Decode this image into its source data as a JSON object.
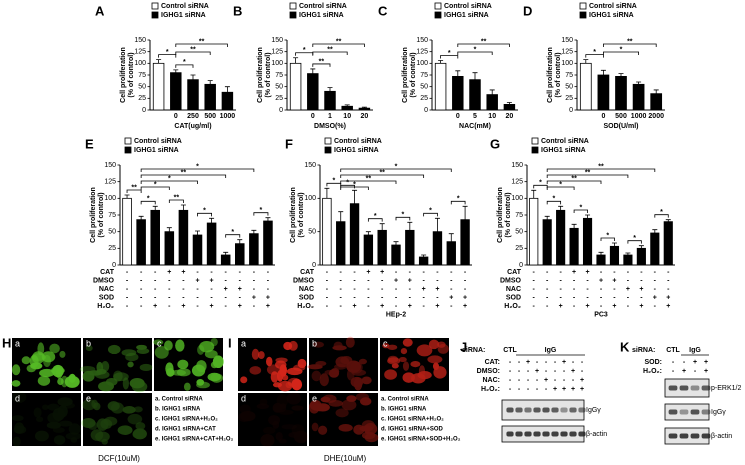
{
  "chart_data": [
    {
      "type": "bar",
      "letter": "A",
      "ylabel": [
        "Cell proliferation",
        "(% of control)"
      ],
      "xlabel": "CAT(ug/ml)",
      "categories": [
        null,
        "0",
        "250",
        "500",
        "1000"
      ],
      "series": [
        {
          "name": "Control siRNA",
          "color": "#ffffff",
          "values": [
            100,
            null,
            null,
            null,
            null
          ],
          "errors": [
            8,
            null,
            null,
            null,
            null
          ]
        },
        {
          "name": "IGHG1 siRNA",
          "color": "#000000",
          "values": [
            null,
            80,
            65,
            55,
            38
          ],
          "errors": [
            null,
            6,
            10,
            8,
            12
          ]
        }
      ],
      "ylim": [
        0,
        150
      ],
      "yticks": [
        0,
        25,
        50,
        75,
        100,
        125,
        150
      ],
      "significance": [
        {
          "bars": [
            0,
            1
          ],
          "label": "*"
        },
        {
          "bars": [
            1,
            2
          ],
          "label": "*"
        },
        {
          "bars": [
            1,
            3
          ],
          "label": "**"
        },
        {
          "bars": [
            1,
            4
          ],
          "label": "**"
        }
      ]
    },
    {
      "type": "bar",
      "letter": "B",
      "ylabel": [
        "Cell proliferation",
        "(% of control)"
      ],
      "xlabel": "DMSO(%)",
      "categories": [
        null,
        "0",
        "1",
        "10",
        "20"
      ],
      "series": [
        {
          "name": "Control siRNA",
          "color": "#ffffff",
          "values": [
            100,
            null,
            null,
            null,
            null
          ],
          "errors": [
            12,
            null,
            null,
            null,
            null
          ]
        },
        {
          "name": "IGHG1 siRNA",
          "color": "#000000",
          "values": [
            null,
            78,
            40,
            8,
            4
          ],
          "errors": [
            null,
            10,
            8,
            3,
            2
          ]
        }
      ],
      "ylim": [
        0,
        150
      ],
      "yticks": [
        0,
        25,
        50,
        75,
        100,
        125,
        150
      ],
      "significance": [
        {
          "bars": [
            0,
            1
          ],
          "label": "*"
        },
        {
          "bars": [
            1,
            2
          ],
          "label": "**"
        },
        {
          "bars": [
            1,
            3
          ],
          "label": "**"
        },
        {
          "bars": [
            1,
            4
          ],
          "label": "**"
        }
      ]
    },
    {
      "type": "bar",
      "letter": "C",
      "ylabel": [
        "Cell proliferation",
        "(% of control)"
      ],
      "xlabel": "NAC(mM)",
      "categories": [
        null,
        "0",
        "5",
        "10",
        "20"
      ],
      "series": [
        {
          "name": "Control siRNA",
          "color": "#ffffff",
          "values": [
            100,
            null,
            null,
            null,
            null
          ],
          "errors": [
            6,
            null,
            null,
            null,
            null
          ]
        },
        {
          "name": "IGHG1 siRNA",
          "color": "#000000",
          "values": [
            null,
            72,
            65,
            33,
            12
          ],
          "errors": [
            null,
            12,
            15,
            10,
            4
          ]
        }
      ],
      "ylim": [
        0,
        150
      ],
      "yticks": [
        0,
        25,
        50,
        75,
        100,
        125,
        150
      ],
      "significance": [
        {
          "bars": [
            0,
            1
          ],
          "label": "*"
        },
        {
          "bars": [
            1,
            3
          ],
          "label": "*"
        },
        {
          "bars": [
            1,
            4
          ],
          "label": "**"
        }
      ]
    },
    {
      "type": "bar",
      "letter": "D",
      "ylabel": [
        "Cell proliferation",
        "(% of control)"
      ],
      "xlabel": "SOD(U/ml)",
      "categories": [
        null,
        "0",
        "500",
        "1000",
        "2000"
      ],
      "series": [
        {
          "name": "Control siRNA",
          "color": "#ffffff",
          "values": [
            100,
            null,
            null,
            null,
            null
          ],
          "errors": [
            8,
            null,
            null,
            null,
            null
          ]
        },
        {
          "name": "IGHG1 siRNA",
          "color": "#000000",
          "values": [
            null,
            75,
            72,
            55,
            35
          ],
          "errors": [
            null,
            10,
            6,
            5,
            8
          ]
        }
      ],
      "ylim": [
        0,
        150
      ],
      "yticks": [
        0,
        25,
        50,
        75,
        100,
        125,
        150
      ],
      "significance": [
        {
          "bars": [
            0,
            1
          ],
          "label": "*"
        },
        {
          "bars": [
            1,
            3
          ],
          "label": "*"
        },
        {
          "bars": [
            1,
            4
          ],
          "label": "**"
        }
      ]
    },
    {
      "type": "bar",
      "letter": "E",
      "ylabel": [
        "Cell proliferation",
        "(% of control)"
      ],
      "series": [
        {
          "name": "Control siRNA",
          "color": "#ffffff",
          "values": [
            100,
            null,
            null,
            null,
            null,
            null,
            null,
            null,
            null,
            null,
            null
          ],
          "errors": [
            5,
            null,
            null,
            null,
            null,
            null,
            null,
            null,
            null,
            null,
            null
          ]
        },
        {
          "name": "IGHG1 siRNA",
          "color": "#000000",
          "values": [
            null,
            68,
            82,
            50,
            82,
            45,
            63,
            15,
            32,
            47,
            66
          ],
          "errors": [
            null,
            5,
            6,
            6,
            8,
            6,
            7,
            4,
            6,
            5,
            5
          ]
        }
      ],
      "ylim": [
        0,
        150
      ],
      "yticks": [
        0,
        25,
        50,
        75,
        100,
        125,
        150
      ],
      "conditions": {
        "rows": [
          "CAT",
          "DMSO",
          "NAC",
          "SOD",
          "H₂O₂"
        ],
        "cells": [
          [
            "-",
            "-",
            "-",
            "+",
            "+",
            "-",
            "-",
            "-",
            "-",
            "-",
            "-"
          ],
          [
            "-",
            "-",
            "-",
            "-",
            "-",
            "+",
            "+",
            "-",
            "-",
            "-",
            "-"
          ],
          [
            "-",
            "-",
            "-",
            "-",
            "-",
            "-",
            "-",
            "+",
            "+",
            "-",
            "-"
          ],
          [
            "-",
            "-",
            "-",
            "-",
            "-",
            "-",
            "-",
            "-",
            "-",
            "+",
            "+"
          ],
          [
            "-",
            "-",
            "+",
            "-",
            "+",
            "-",
            "+",
            "-",
            "+",
            "-",
            "+"
          ]
        ]
      },
      "significance": [
        {
          "bars": [
            0,
            1
          ],
          "label": "**"
        },
        {
          "bars": [
            1,
            2
          ],
          "label": "*"
        },
        {
          "bars": [
            3,
            4
          ],
          "label": "**"
        },
        {
          "bars": [
            5,
            6
          ],
          "label": "*"
        },
        {
          "bars": [
            7,
            8
          ],
          "label": "*"
        },
        {
          "bars": [
            9,
            10
          ],
          "label": "*"
        },
        {
          "bars": [
            1,
            3
          ],
          "label": "*"
        },
        {
          "bars": [
            1,
            5
          ],
          "label": "*"
        },
        {
          "bars": [
            1,
            7
          ],
          "label": "**"
        },
        {
          "bars": [
            1,
            9
          ],
          "label": "*"
        }
      ]
    },
    {
      "type": "bar",
      "letter": "F",
      "ylabel": [
        "Cell proliferation",
        "(% of control)"
      ],
      "xlabel": "HEp-2",
      "series": [
        {
          "name": "Control siRNA",
          "color": "#ffffff",
          "values": [
            100,
            null,
            null,
            null,
            null,
            null,
            null,
            null,
            null,
            null,
            null
          ],
          "errors": [
            15,
            null,
            null,
            null,
            null,
            null,
            null,
            null,
            null,
            null,
            null
          ]
        },
        {
          "name": "IGHG1 siRNA",
          "color": "#000000",
          "values": [
            null,
            65,
            92,
            45,
            52,
            30,
            52,
            12,
            50,
            35,
            68
          ],
          "errors": [
            null,
            15,
            20,
            5,
            10,
            5,
            12,
            3,
            20,
            12,
            20
          ]
        }
      ],
      "ylim": [
        0,
        150
      ],
      "yticks": [
        0,
        50,
        100,
        150
      ],
      "conditions": {
        "rows": [
          "CAT",
          "DMSO",
          "NAC",
          "SOD",
          "H₂O₂"
        ],
        "cells": [
          [
            "-",
            "-",
            "-",
            "+",
            "+",
            "-",
            "-",
            "-",
            "-",
            "-",
            "-"
          ],
          [
            "-",
            "-",
            "-",
            "-",
            "-",
            "+",
            "+",
            "-",
            "-",
            "-",
            "-"
          ],
          [
            "-",
            "-",
            "-",
            "-",
            "-",
            "-",
            "-",
            "+",
            "+",
            "-",
            "-"
          ],
          [
            "-",
            "-",
            "-",
            "-",
            "-",
            "-",
            "-",
            "-",
            "-",
            "+",
            "+"
          ],
          [
            "-",
            "-",
            "+",
            "-",
            "+",
            "-",
            "+",
            "-",
            "+",
            "-",
            "+"
          ]
        ]
      },
      "significance": [
        {
          "bars": [
            0,
            1
          ],
          "label": "*"
        },
        {
          "bars": [
            1,
            2
          ],
          "label": "*"
        },
        {
          "bars": [
            3,
            4
          ],
          "label": "*"
        },
        {
          "bars": [
            5,
            6
          ],
          "label": "*"
        },
        {
          "bars": [
            7,
            8
          ],
          "label": "*"
        },
        {
          "bars": [
            9,
            10
          ],
          "label": "*"
        },
        {
          "bars": [
            1,
            3
          ],
          "label": "*"
        },
        {
          "bars": [
            1,
            5
          ],
          "label": "**"
        },
        {
          "bars": [
            1,
            7
          ],
          "label": "**"
        },
        {
          "bars": [
            1,
            9
          ],
          "label": "*"
        }
      ]
    },
    {
      "type": "bar",
      "letter": "G",
      "ylabel": [
        "Cell proliferation",
        "(% of control)"
      ],
      "xlabel": "PC3",
      "series": [
        {
          "name": "Control siRNA",
          "color": "#ffffff",
          "values": [
            100,
            null,
            null,
            null,
            null,
            null,
            null,
            null,
            null,
            null,
            null
          ],
          "errors": [
            12,
            null,
            null,
            null,
            null,
            null,
            null,
            null,
            null,
            null,
            null
          ]
        },
        {
          "name": "IGHG1 siRNA",
          "color": "#000000",
          "values": [
            null,
            68,
            82,
            55,
            70,
            15,
            28,
            15,
            25,
            48,
            65
          ],
          "errors": [
            null,
            5,
            6,
            6,
            5,
            4,
            5,
            3,
            4,
            5,
            3
          ]
        }
      ],
      "ylim": [
        0,
        150
      ],
      "yticks": [
        0,
        25,
        50,
        75,
        100,
        125,
        150
      ],
      "conditions": {
        "rows": [
          "CAT",
          "DMSO",
          "NAC",
          "SOD",
          "H₂O₂"
        ],
        "cells": [
          [
            "-",
            "-",
            "-",
            "+",
            "+",
            "-",
            "-",
            "-",
            "-",
            "-",
            "-"
          ],
          [
            "-",
            "-",
            "-",
            "-",
            "-",
            "+",
            "+",
            "-",
            "-",
            "-",
            "-"
          ],
          [
            "-",
            "-",
            "-",
            "-",
            "-",
            "-",
            "-",
            "+",
            "+",
            "-",
            "-"
          ],
          [
            "-",
            "-",
            "-",
            "-",
            "-",
            "-",
            "-",
            "-",
            "-",
            "+",
            "+"
          ],
          [
            "-",
            "-",
            "+",
            "-",
            "+",
            "-",
            "+",
            "-",
            "+",
            "-",
            "+"
          ]
        ]
      },
      "significance": [
        {
          "bars": [
            0,
            1
          ],
          "label": "*"
        },
        {
          "bars": [
            1,
            2
          ],
          "label": "*"
        },
        {
          "bars": [
            3,
            4
          ],
          "label": "*"
        },
        {
          "bars": [
            5,
            6
          ],
          "label": "*"
        },
        {
          "bars": [
            7,
            8
          ],
          "label": "*"
        },
        {
          "bars": [
            9,
            10
          ],
          "label": "*"
        },
        {
          "bars": [
            1,
            3
          ],
          "label": "*"
        },
        {
          "bars": [
            1,
            5
          ],
          "label": "**"
        },
        {
          "bars": [
            1,
            7
          ],
          "label": "**"
        },
        {
          "bars": [
            1,
            9
          ],
          "label": "**"
        }
      ]
    }
  ],
  "image_panels": [
    {
      "letter": "H",
      "tile_color": "#5fd02a",
      "tiles": [
        "a",
        "b",
        "c",
        "d",
        "e"
      ],
      "legend": [
        "a. Control siRNA",
        "b. IGHG1 siRNA",
        "c. IGHG1 siRNA+H₂O₂",
        "d. IGHG1 siRNA+CAT",
        "e. IGHG1 siRNA+CAT+H₂O₂"
      ],
      "caption": "DCF(10uM)"
    },
    {
      "letter": "I",
      "tile_color": "#e0281c",
      "tiles": [
        "a",
        "b",
        "c",
        "d",
        "e"
      ],
      "legend": [
        "a. Control siRNA",
        "b. IGHG1 siRNA",
        "c. IGHG1 siRNA+H₂O₂",
        "d. IGHG1 siRNA+SOD",
        "e. IGHG1 siRNA+SOD+H₂O₂"
      ],
      "caption": "DHE(10uM)"
    }
  ],
  "blots": [
    {
      "letter": "J",
      "sirna": {
        "label": "siRNA:",
        "groups": [
          {
            "name": "CTL",
            "lanes": 1
          },
          {
            "name": "IgG",
            "lanes": 8
          }
        ]
      },
      "treatments": [
        {
          "label": "CAT:",
          "cells": [
            "-",
            "-",
            "+",
            "-",
            "-",
            "-",
            "+",
            "-",
            "-"
          ]
        },
        {
          "label": "DMSO:",
          "cells": [
            "-",
            "-",
            "-",
            "+",
            "-",
            "-",
            "-",
            "+",
            "-"
          ]
        },
        {
          "label": "NAC:",
          "cells": [
            "-",
            "-",
            "-",
            "-",
            "+",
            "-",
            "-",
            "-",
            "+"
          ]
        },
        {
          "label": "H₂O₂:",
          "cells": [
            "-",
            "-",
            "-",
            "-",
            "-",
            "+",
            "+",
            "+",
            "+"
          ]
        }
      ],
      "bands": [
        "IgGγ",
        "β-actin"
      ]
    },
    {
      "letter": "K",
      "sirna": {
        "label": "siRNA:",
        "groups": [
          {
            "name": "CTL",
            "lanes": 1
          },
          {
            "name": "IgG",
            "lanes": 3
          }
        ]
      },
      "treatments": [
        {
          "label": "SOD:",
          "cells": [
            "-",
            "-",
            "+",
            "+"
          ]
        },
        {
          "label": "H₂O₂:",
          "cells": [
            "-",
            "+",
            "-",
            "+"
          ]
        }
      ],
      "bands": [
        "p-ERK1/2",
        "IgGγ",
        "β-actin"
      ]
    }
  ]
}
